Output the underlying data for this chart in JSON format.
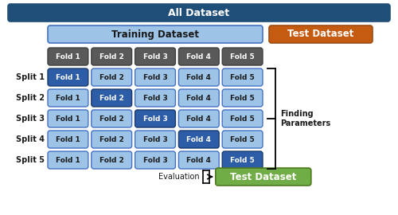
{
  "fig_width": 5.0,
  "fig_height": 2.7,
  "dpi": 100,
  "all_dataset_label": "All Dataset",
  "training_dataset_label": "Training Dataset",
  "test_dataset_label_top": "Test Dataset",
  "test_dataset_label_bottom": "Test Dataset",
  "evaluation_label": "Evaluation",
  "finding_params_label": "Finding\nParameters",
  "split_labels": [
    "Split 1",
    "Split 2",
    "Split 3",
    "Split 4",
    "Split 5"
  ],
  "fold_labels": [
    "Fold 1",
    "Fold 2",
    "Fold 3",
    "Fold 4",
    "Fold 5"
  ],
  "color_all_dataset": "#1F4E79",
  "color_training": "#9DC3E6",
  "color_test_top": "#C55A11",
  "color_test_bottom": "#70AD47",
  "color_fold_header": "#595959",
  "color_fold_light": "#9DC3E6",
  "color_fold_dark": "#2E5DA8",
  "text_white": "#FFFFFF",
  "text_dark": "#1A1A1A",
  "background": "#FFFFFF",
  "all_bar_edge": "#1F4E79",
  "train_bar_edge": "#4472C4",
  "test_top_edge": "#9C4D14",
  "test_bot_edge": "#4D7A1E",
  "fold_header_edge": "#3F3F3F",
  "fold_dark_edge": "#1A3A6E",
  "fold_light_edge": "#4472C4"
}
